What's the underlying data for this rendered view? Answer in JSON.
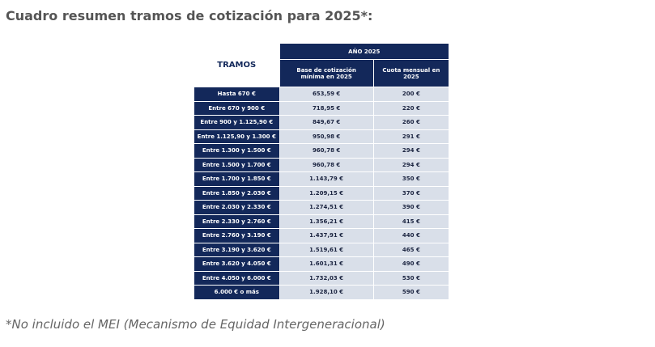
{
  "title": "Cuadro resumen tramos de cotización para 2025*:",
  "table": {
    "header": {
      "tramos": "TRAMOS",
      "year": "AÑO 2025",
      "base": "Base de cotización mínima en 2025",
      "cuota": "Cuota mensual en 2025"
    },
    "rows": [
      [
        "Hasta 670 €",
        "653,59 €",
        "200 €"
      ],
      [
        "Entre 670 y 900 €",
        "718,95 €",
        "220 €"
      ],
      [
        "Entre 900 y 1.125,90 €",
        "849,67 €",
        "260 €"
      ],
      [
        "Entre 1.125,90 y 1.300 €",
        "950,98 €",
        "291 €"
      ],
      [
        "Entre 1.300 y 1.500 €",
        "960,78 €",
        "294 €"
      ],
      [
        "Entre 1.500 y 1.700 €",
        "960,78 €",
        "294 €"
      ],
      [
        "Entre 1.700 y 1.850 €",
        "1.143,79 €",
        "350 €"
      ],
      [
        "Entre 1.850 y 2.030 €",
        "1.209,15 €",
        "370 €"
      ],
      [
        "Entre 2.030 y 2.330 €",
        "1.274,51 €",
        "390 €"
      ],
      [
        "Entre 2.330 y 2.760 €",
        "1.356,21 €",
        "415 €"
      ],
      [
        "Entre 2.760 y 3.190 €",
        "1.437,91 €",
        "440 €"
      ],
      [
        "Entre 3.190 y 3.620 €",
        "1.519,61 €",
        "465 €"
      ],
      [
        "Entre 3.620 y 4.050 €",
        "1.601,31 €",
        "490 €"
      ],
      [
        "Entre 4.050 y 6.000 €",
        "1.732,03 €",
        "530 €"
      ],
      [
        "6.000 € o más",
        "1.928,10 €",
        "590 €"
      ]
    ]
  },
  "footnote": "*No incluido el MEI (Mecanismo de Equidad Intergeneracional)"
}
